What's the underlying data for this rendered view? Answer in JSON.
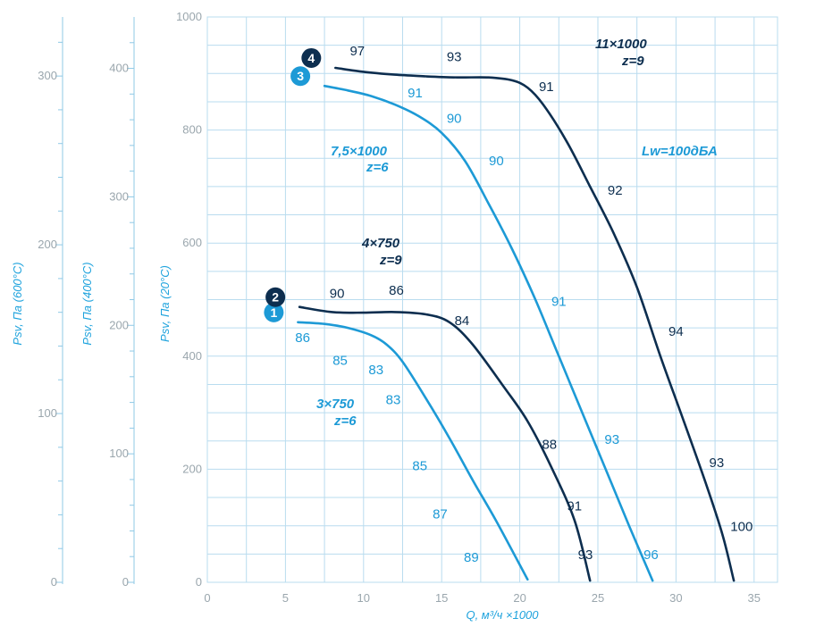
{
  "chart_data": {
    "type": "line",
    "xlabel": "Q, м³/ч ×1000",
    "xlim": [
      0,
      36.5
    ],
    "x_ticks": [
      "0",
      "5",
      "10",
      "15",
      "20",
      "25",
      "30",
      "35"
    ],
    "x_tick_values": [
      0,
      5,
      10,
      15,
      20,
      25,
      30,
      35
    ],
    "y_axes": [
      {
        "label": "Psv, Па (20°C)",
        "lim": [
          0,
          1000
        ],
        "ticks": [
          "0",
          "200",
          "400",
          "600",
          "800",
          "1000"
        ],
        "tick_values": [
          0,
          200,
          400,
          600,
          800,
          1000
        ]
      },
      {
        "label": "Psv, Па (400°C)",
        "lim": [
          0,
          440
        ],
        "ticks": [
          "0",
          "100",
          "200",
          "300",
          "400"
        ],
        "tick_values": [
          0,
          100,
          200,
          300,
          400
        ]
      },
      {
        "label": "Psv, Па (600°C)",
        "lim": [
          0,
          335
        ],
        "ticks": [
          "0",
          "100",
          "200",
          "300"
        ],
        "tick_values": [
          0,
          100,
          200,
          300
        ]
      }
    ],
    "grid": true,
    "colors": {
      "dark": "#0d2e4f",
      "blue": "#1d9ad6",
      "grid": "#b9dcef",
      "axis": "#8fc9e6"
    },
    "series": [
      {
        "name": "1",
        "badge": "1",
        "color": "#1d9ad6",
        "annotation": [
          "3×750",
          "z=6"
        ],
        "x": [
          5.8,
          7.5,
          9,
          10.5,
          11.5,
          12.5,
          14,
          15.5,
          17,
          18.5,
          20.5
        ],
        "y": [
          460,
          457,
          450,
          437,
          420,
          390,
          325,
          255,
          180,
          108,
          5
        ],
        "labels": [
          {
            "t": "86",
            "x": 6.1,
            "y": 425
          },
          {
            "t": "85",
            "x": 8.5,
            "y": 385
          },
          {
            "t": "83",
            "x": 10.8,
            "y": 368
          },
          {
            "t": "83",
            "x": 11.9,
            "y": 315
          },
          {
            "t": "85",
            "x": 13.6,
            "y": 198
          },
          {
            "t": "87",
            "x": 14.9,
            "y": 113
          },
          {
            "t": "89",
            "x": 16.9,
            "y": 36
          }
        ]
      },
      {
        "name": "2",
        "badge": "2",
        "color": "#0d2e4f",
        "annotation": [
          "4×750",
          "z=9"
        ],
        "x": [
          5.9,
          8,
          10,
          12,
          14,
          15.5,
          17,
          19,
          20.5,
          22,
          23.5,
          24.5
        ],
        "y": [
          487,
          478,
          477,
          478,
          474,
          460,
          420,
          345,
          285,
          205,
          110,
          3
        ],
        "labels": [
          {
            "t": "90",
            "x": 8.3,
            "y": 503
          },
          {
            "t": "86",
            "x": 12.1,
            "y": 509
          },
          {
            "t": "84",
            "x": 16.3,
            "y": 455
          },
          {
            "t": "88",
            "x": 21.9,
            "y": 236
          },
          {
            "t": "91",
            "x": 23.5,
            "y": 127
          },
          {
            "t": "93",
            "x": 24.2,
            "y": 41
          }
        ]
      },
      {
        "name": "3",
        "badge": "3",
        "color": "#1d9ad6",
        "annotation": [
          "7,5×1000",
          "z=6"
        ],
        "x": [
          7.5,
          9,
          10.5,
          12,
          13.5,
          15,
          16.5,
          18,
          19.5,
          21,
          22.5,
          24,
          25.5,
          27,
          28.5
        ],
        "y": [
          878,
          870,
          860,
          845,
          825,
          795,
          745,
          670,
          590,
          500,
          400,
          300,
          200,
          100,
          3
        ],
        "labels": [
          {
            "t": "91",
            "x": 13.3,
            "y": 858
          },
          {
            "t": "90",
            "x": 15.8,
            "y": 813
          },
          {
            "t": "90",
            "x": 18.5,
            "y": 738
          },
          {
            "t": "91",
            "x": 22.5,
            "y": 489
          },
          {
            "t": "93",
            "x": 25.9,
            "y": 245
          },
          {
            "t": "96",
            "x": 28.4,
            "y": 41
          }
        ]
      },
      {
        "name": "4",
        "badge": "4",
        "color": "#0d2e4f",
        "annotation": [
          "11×1000",
          "z=9"
        ],
        "x": [
          8.2,
          10,
          12,
          14,
          16,
          18,
          19.5,
          20.5,
          21.5,
          23,
          24.5,
          26,
          27.5,
          29,
          30.5,
          32,
          33,
          33.7
        ],
        "y": [
          910,
          903,
          898,
          895,
          893,
          893,
          888,
          875,
          845,
          780,
          700,
          618,
          522,
          400,
          285,
          168,
          82,
          3
        ],
        "labels": [
          {
            "t": "97",
            "x": 9.6,
            "y": 932
          },
          {
            "t": "93",
            "x": 15.8,
            "y": 922
          },
          {
            "t": "91",
            "x": 21.7,
            "y": 869
          },
          {
            "t": "92",
            "x": 26.1,
            "y": 686
          },
          {
            "t": "94",
            "x": 30,
            "y": 436
          },
          {
            "t": "93",
            "x": 32.6,
            "y": 204
          },
          {
            "t": "100",
            "x": 34.2,
            "y": 91
          }
        ]
      }
    ],
    "notes": [
      {
        "text": "Lw=100дБА",
        "color": "#1d9ad6"
      }
    ]
  }
}
